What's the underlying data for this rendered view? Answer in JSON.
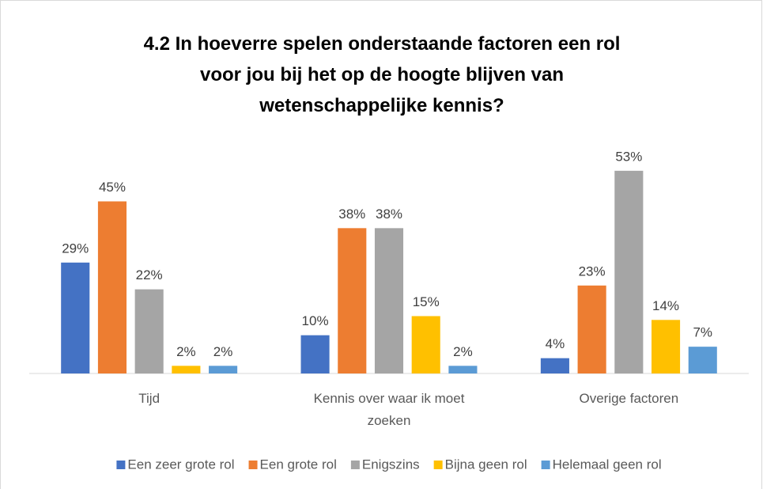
{
  "chart_data": {
    "type": "bar",
    "title": "4.2 In hoeverre spelen onderstaande factoren een rol voor jou bij het op de hoogte blijven van wetenschappelijke kennis?",
    "categories": [
      "Tijd",
      "Kennis over waar ik moet zoeken",
      "Overige factoren"
    ],
    "series": [
      {
        "name": "Een zeer grote rol",
        "color": "#4472c4",
        "values": [
          29,
          10,
          4
        ],
        "value_labels": [
          "29%",
          "10%",
          "4%"
        ]
      },
      {
        "name": "Een grote rol",
        "color": "#ed7d31",
        "values": [
          45,
          38,
          23
        ],
        "value_labels": [
          "45%",
          "38%",
          "23%"
        ]
      },
      {
        "name": "Enigszins",
        "color": "#a5a5a5",
        "values": [
          22,
          38,
          53
        ],
        "value_labels": [
          "22%",
          "38%",
          "53%"
        ]
      },
      {
        "name": "Bijna geen rol",
        "color": "#ffc000",
        "values": [
          2,
          15,
          14
        ],
        "value_labels": [
          "2%",
          "15%",
          "14%"
        ]
      },
      {
        "name": "Helemaal geen rol",
        "color": "#5b9bd5",
        "values": [
          2,
          2,
          7
        ],
        "value_labels": [
          "2%",
          "2%",
          "7%"
        ]
      }
    ],
    "ylim": [
      0,
      60
    ],
    "legend": "bottom"
  }
}
